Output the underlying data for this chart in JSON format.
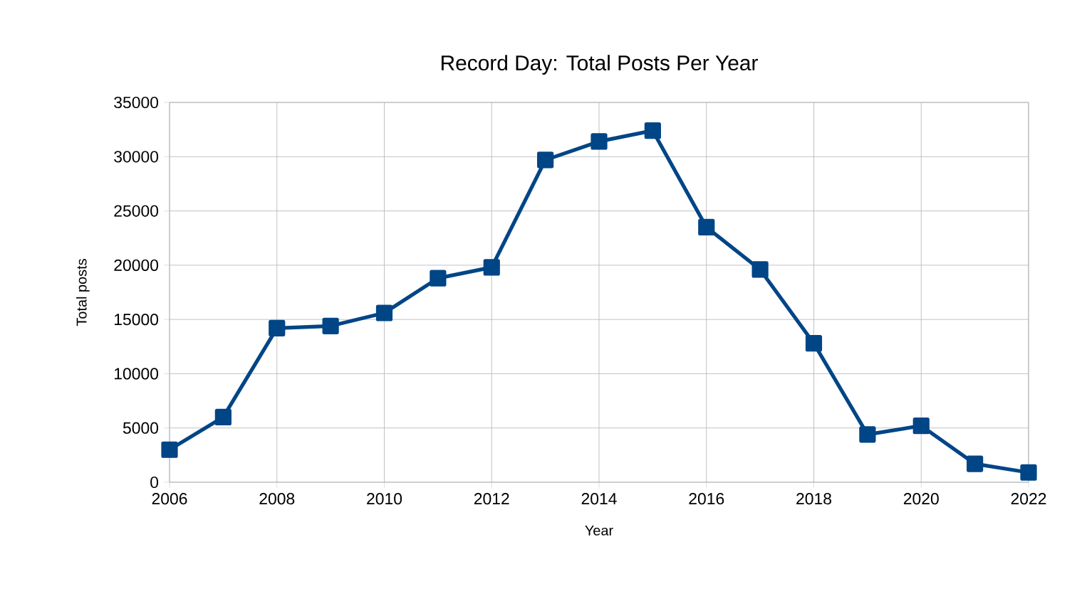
{
  "chart_data": {
    "type": "line",
    "title": "Record Day: Total Posts Per Year",
    "xlabel": "Year",
    "ylabel": "Total posts",
    "x": [
      2006,
      2007,
      2008,
      2009,
      2010,
      2011,
      2012,
      2013,
      2014,
      2015,
      2016,
      2017,
      2018,
      2019,
      2020,
      2021,
      2022
    ],
    "values": [
      3000,
      6000,
      14200,
      14400,
      15600,
      18800,
      19800,
      29700,
      31400,
      32400,
      23500,
      19600,
      12800,
      4400,
      5200,
      1700,
      900
    ],
    "color": "#004586",
    "marker": "square",
    "line_style": "solid",
    "grid": true,
    "xlim": [
      2006,
      2022
    ],
    "xticks": [
      2006,
      2008,
      2010,
      2012,
      2014,
      2016,
      2018,
      2020,
      2022
    ],
    "ylim": [
      0,
      35000
    ],
    "yticks": [
      0,
      5000,
      10000,
      15000,
      20000,
      25000,
      30000,
      35000
    ]
  }
}
